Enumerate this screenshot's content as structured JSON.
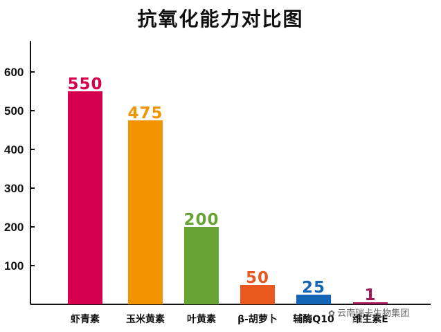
{
  "chart_data": {
    "type": "bar",
    "title": "抗氧化能力对比图",
    "categories": [
      "虾青素",
      "玉米黄素",
      "叶黄素",
      "β-胡萝卜",
      "辅酶Q10",
      "维生素E"
    ],
    "values": [
      550,
      475,
      200,
      50,
      25,
      1
    ],
    "value_labels": [
      "550",
      "475",
      "200",
      "50",
      "25",
      "1"
    ],
    "colors": [
      "#d4004e",
      "#f29400",
      "#67a433",
      "#e8581f",
      "#1565b6",
      "#a3195b"
    ],
    "yticks": [
      100,
      200,
      300,
      400,
      500,
      600
    ],
    "ylim": [
      0,
      680
    ],
    "grid": false,
    "legend": "none"
  },
  "watermark": {
    "text": "云南瑞卡生物集团",
    "icon": "wechat-icon"
  }
}
